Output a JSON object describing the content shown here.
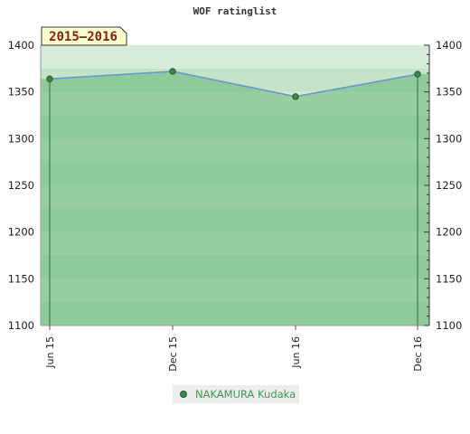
{
  "chart_data": {
    "type": "area",
    "title": "WOF ratinglist",
    "period_label": "2015–2016",
    "x": [
      "Jun 15",
      "Dec 15",
      "Jun 16",
      "Dec 16"
    ],
    "series": [
      {
        "name": "NAKAMURA Kudaka",
        "values": [
          1364,
          1372,
          1345,
          1369
        ]
      }
    ],
    "ylim": [
      1100,
      1400
    ],
    "yticks": [
      1100,
      1150,
      1200,
      1250,
      1300,
      1350,
      1400
    ],
    "grid": true,
    "right_axis": true,
    "legend_position": "bottom-center",
    "colors": {
      "line": "#6699cc",
      "marker_fill": "#3a8a4a",
      "marker_stroke": "#1f5a2a",
      "legend_text": "#3a9a4e",
      "badge_fill": "#ffffcc",
      "badge_text": "#8b1a1a"
    }
  }
}
